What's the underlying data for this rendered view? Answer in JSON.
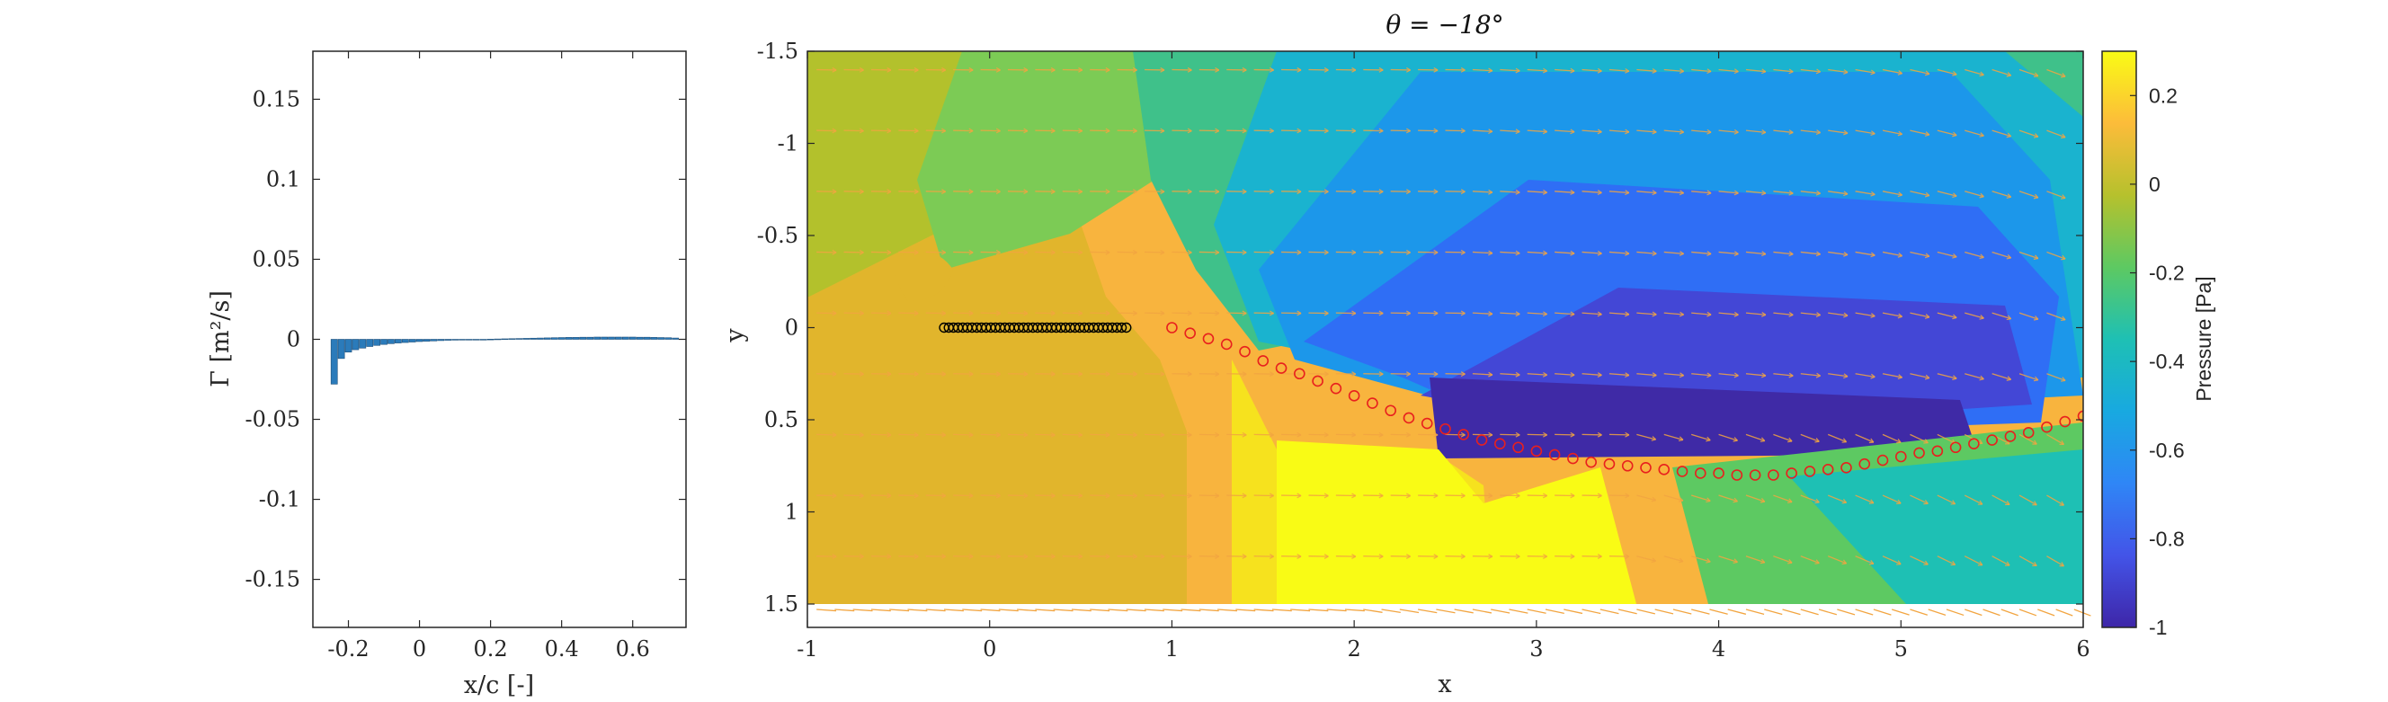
{
  "chart_data": [
    {
      "type": "bar",
      "title": "",
      "xlabel": "x/c [-]",
      "ylabel": "Γ [m²/s]",
      "xlim": [
        -0.3,
        0.75
      ],
      "ylim": [
        -0.18,
        0.18
      ],
      "x_ticks": [
        "-0.2",
        "0",
        "0.2",
        "0.4",
        "0.6"
      ],
      "y_ticks": [
        "0.15",
        "0.1",
        "0.05",
        "0",
        "-0.05",
        "-0.1",
        "-0.15"
      ],
      "bar_color": "#2b7bba",
      "x": [
        -0.24,
        -0.22,
        -0.2,
        -0.18,
        -0.16,
        -0.14,
        -0.12,
        -0.1,
        -0.08,
        -0.06,
        -0.04,
        -0.02,
        0,
        0.02,
        0.04,
        0.06,
        0.08,
        0.1,
        0.12,
        0.14,
        0.16,
        0.18,
        0.2,
        0.22,
        0.24,
        0.26,
        0.28,
        0.3,
        0.32,
        0.34,
        0.36,
        0.38,
        0.4,
        0.42,
        0.44,
        0.46,
        0.48,
        0.5,
        0.52,
        0.54,
        0.56,
        0.58,
        0.6,
        0.62,
        0.64,
        0.66,
        0.68,
        0.7,
        0.72
      ],
      "values": [
        -0.028,
        -0.012,
        -0.008,
        -0.0065,
        -0.0055,
        -0.0045,
        -0.0038,
        -0.0032,
        -0.0027,
        -0.0023,
        -0.002,
        -0.0017,
        -0.0014,
        -0.0012,
        -0.001,
        -0.0008,
        -0.0006,
        -0.0005,
        -0.0003,
        -0.0002,
        -0.0001,
        0.0,
        0.0001,
        0.0002,
        0.0003,
        0.0004,
        0.0005,
        0.0006,
        0.0007,
        0.0008,
        0.0009,
        0.001,
        0.0011,
        0.0012,
        0.0012,
        0.0013,
        0.0013,
        0.0014,
        0.0014,
        0.0014,
        0.0014,
        0.0014,
        0.0014,
        0.0013,
        0.0013,
        0.0012,
        0.0011,
        0.001,
        0.0008
      ]
    },
    {
      "type": "heatmap",
      "title": "θ = −18°",
      "xlabel": "x",
      "ylabel": "y",
      "xlim": [
        -1,
        6
      ],
      "ylim": [
        -1.5,
        1.5
      ],
      "y_reversed": true,
      "x_ticks": [
        "-1",
        "0",
        "1",
        "2",
        "3",
        "4",
        "5",
        "6"
      ],
      "y_ticks": [
        "-1.5",
        "-1",
        "-0.5",
        "0",
        "0.5",
        "1",
        "1.5"
      ],
      "colorbar": {
        "label": "Pressure [Pa]",
        "range": [
          -1,
          0.3
        ],
        "ticks": [
          "0.2",
          "0",
          "-0.2",
          "-0.4",
          "-0.6",
          "-0.8",
          "-1"
        ],
        "colormap": [
          "#3e26a8",
          "#4354e8",
          "#2f86f6",
          "#18a9e0",
          "#1ec0b4",
          "#5dc962",
          "#b6c12d",
          "#fcbc3a",
          "#f9fb15"
        ]
      },
      "plate": {
        "x_start": -0.25,
        "x_end": 0.75,
        "y": 0,
        "marker_color": "#000000"
      },
      "wake_points": {
        "marker_color": "#e8201e",
        "x": [
          1.0,
          1.1,
          1.2,
          1.3,
          1.4,
          1.5,
          1.6,
          1.7,
          1.8,
          1.9,
          2.0,
          2.1,
          2.2,
          2.3,
          2.4,
          2.5,
          2.6,
          2.7,
          2.8,
          2.9,
          3.0,
          3.1,
          3.2,
          3.3,
          3.4,
          3.5,
          3.6,
          3.7,
          3.8,
          3.9,
          4.0,
          4.1,
          4.2,
          4.3,
          4.4,
          4.5,
          4.6,
          4.7,
          4.8,
          4.9,
          5.0,
          5.1,
          5.2,
          5.3,
          5.4,
          5.5,
          5.6,
          5.7,
          5.8,
          5.9,
          6.0
        ],
        "y": [
          0.0,
          0.03,
          0.06,
          0.09,
          0.13,
          0.18,
          0.22,
          0.25,
          0.29,
          0.33,
          0.37,
          0.41,
          0.45,
          0.49,
          0.52,
          0.55,
          0.58,
          0.61,
          0.63,
          0.65,
          0.67,
          0.69,
          0.71,
          0.73,
          0.74,
          0.75,
          0.76,
          0.77,
          0.78,
          0.79,
          0.79,
          0.8,
          0.8,
          0.8,
          0.79,
          0.78,
          0.77,
          0.76,
          0.74,
          0.72,
          0.7,
          0.68,
          0.67,
          0.65,
          0.63,
          0.61,
          0.59,
          0.57,
          0.54,
          0.51,
          0.48
        ]
      },
      "vector_color": "#f2a541"
    }
  ]
}
